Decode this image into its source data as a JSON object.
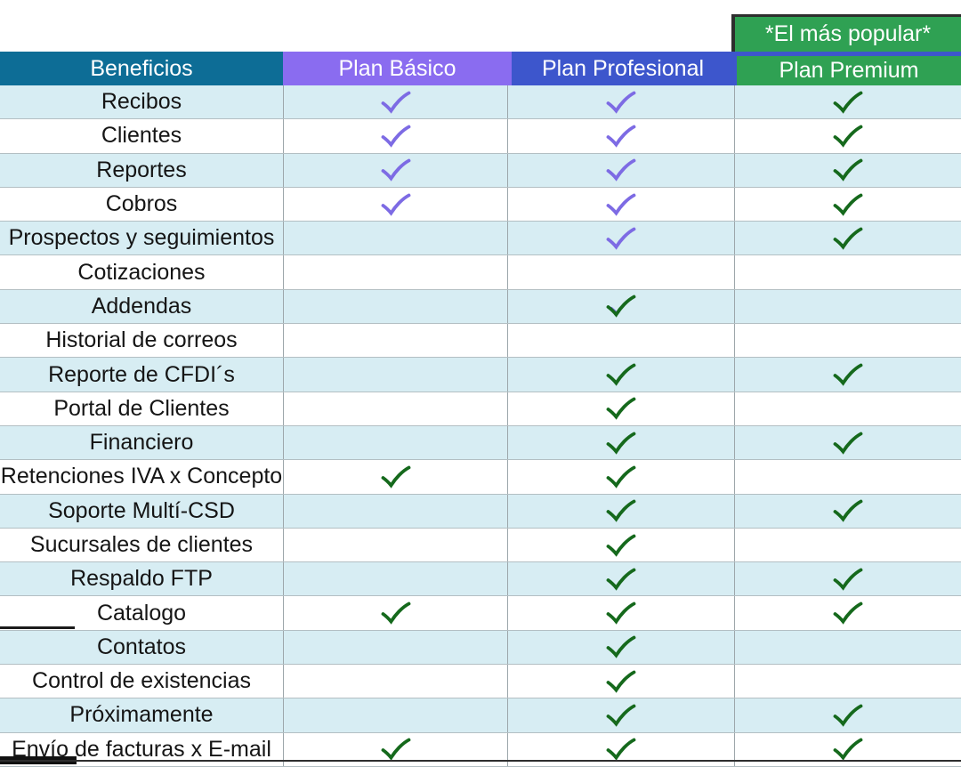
{
  "table": {
    "banner": "*El más popular*",
    "columns": [
      {
        "key": "beneficios",
        "label": "Beneficios"
      },
      {
        "key": "basico",
        "label": "Plan Básico"
      },
      {
        "key": "profesional",
        "label": "Plan Profesional"
      },
      {
        "key": "premium",
        "label": "Plan Premium"
      }
    ],
    "colors": {
      "beneficios_header": "#0d6d96",
      "basico_header": "#8a6cf0",
      "profesional_header": "#3d56cc",
      "premium_header": "#2fa153",
      "banner_bg": "#2fa153",
      "row_odd": "#d7edf3",
      "row_even": "#ffffff",
      "check_purple": "#7d6be4",
      "check_green": "#15691c"
    },
    "rows": [
      {
        "label": "Recibos",
        "basico": "purple",
        "profesional": "purple",
        "premium": "green"
      },
      {
        "label": "Clientes",
        "basico": "purple",
        "profesional": "purple",
        "premium": "green"
      },
      {
        "label": "Reportes",
        "basico": "purple",
        "profesional": "purple",
        "premium": "green"
      },
      {
        "label": "Cobros",
        "basico": "purple",
        "profesional": "purple",
        "premium": "green"
      },
      {
        "label": "Prospectos y seguimientos",
        "basico": null,
        "profesional": "purple",
        "premium": "green"
      },
      {
        "label": "Cotizaciones",
        "basico": null,
        "profesional": null,
        "premium": null
      },
      {
        "label": "Addendas",
        "basico": null,
        "profesional": "green-purple",
        "premium": null
      },
      {
        "label": "Historial de correos",
        "basico": null,
        "profesional": null,
        "premium": null
      },
      {
        "label": "Reporte de CFDI´s",
        "basico": null,
        "profesional": "green",
        "premium": "green"
      },
      {
        "label": "Portal de Clientes",
        "basico": null,
        "profesional": "green",
        "premium": null
      },
      {
        "label": "Financiero",
        "basico": null,
        "profesional": "green",
        "premium": "green"
      },
      {
        "label": "Retenciones IVA x Concepto",
        "basico": "green",
        "profesional": "green",
        "premium": null
      },
      {
        "label": "Soporte Multí-CSD",
        "basico": null,
        "profesional": "green",
        "premium": "green"
      },
      {
        "label": "Sucursales de clientes",
        "basico": null,
        "profesional": "green",
        "premium": null
      },
      {
        "label": "Respaldo FTP",
        "basico": null,
        "profesional": "green",
        "premium": "green"
      },
      {
        "label": "Catalogo",
        "basico": "green",
        "profesional": "green",
        "premium": "green"
      },
      {
        "label": "Contatos",
        "basico": null,
        "profesional": "green",
        "premium": null
      },
      {
        "label": "Control de existencias",
        "basico": null,
        "profesional": "green",
        "premium": null
      },
      {
        "label": "Próximamente",
        "basico": null,
        "profesional": "green",
        "premium": "green"
      },
      {
        "label": "Envío de facturas x E-mail",
        "basico": "green",
        "profesional": "green",
        "premium": "green"
      }
    ]
  }
}
